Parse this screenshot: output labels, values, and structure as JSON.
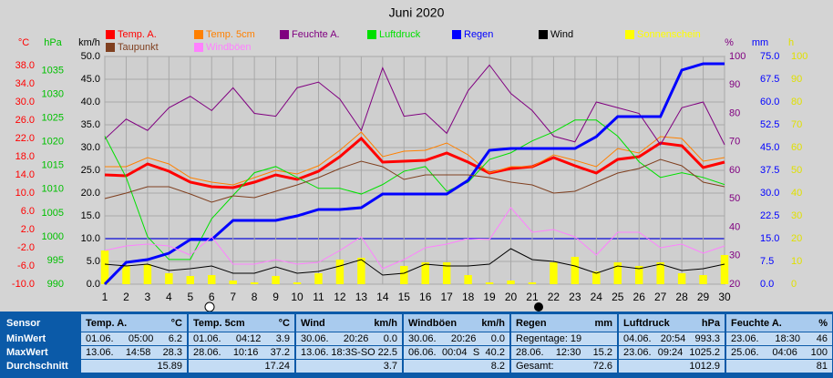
{
  "chart_data": {
    "type": "line",
    "title": "Juni 2020",
    "x": [
      1,
      2,
      3,
      4,
      5,
      6,
      7,
      8,
      9,
      10,
      11,
      12,
      13,
      14,
      15,
      16,
      17,
      18,
      19,
      20,
      21,
      22,
      23,
      24,
      25,
      26,
      27,
      28,
      29,
      30
    ],
    "xlim": [
      1,
      30
    ],
    "xticks": [
      1,
      2,
      3,
      4,
      5,
      6,
      7,
      8,
      9,
      10,
      11,
      12,
      13,
      14,
      15,
      16,
      17,
      18,
      19,
      20,
      21,
      22,
      23,
      24,
      25,
      26,
      27,
      28,
      29,
      30
    ],
    "axes": [
      {
        "label": "°C",
        "color": "#ff0000",
        "lim": [
          -10,
          40
        ],
        "ticks": [
          {
            "value": -10,
            "label": "-10.0"
          },
          {
            "value": -6,
            "label": "-6.0"
          },
          {
            "value": -2,
            "label": "-2.0"
          },
          {
            "value": 2,
            "label": "2.0"
          },
          {
            "value": 6,
            "label": "6.0"
          },
          {
            "value": 10,
            "label": "10.0"
          },
          {
            "value": 14,
            "label": "14.0"
          },
          {
            "value": 18,
            "label": "18.0"
          },
          {
            "value": 22,
            "label": "22.0"
          },
          {
            "value": 26,
            "label": "26.0"
          },
          {
            "value": 30,
            "label": "30.0"
          },
          {
            "value": 34,
            "label": "34.0"
          },
          {
            "value": 38,
            "label": "38.0"
          }
        ]
      },
      {
        "label": "hPa",
        "color": "#00c000",
        "lim": [
          990,
          1038
        ],
        "ticks": [
          990,
          995,
          1000,
          1005,
          1010,
          1015,
          1020,
          1025,
          1030,
          1035
        ]
      },
      {
        "label": "km/h",
        "color": "#000000",
        "lim": [
          0,
          50
        ],
        "grid": true,
        "ticks": [
          {
            "value": 0,
            "label": "0.0"
          },
          {
            "value": 5,
            "label": "5.0"
          },
          {
            "value": 10,
            "label": "10.0"
          },
          {
            "value": 15,
            "label": "15.0"
          },
          {
            "value": 20,
            "label": "20.0"
          },
          {
            "value": 25,
            "label": "25.0"
          },
          {
            "value": 30,
            "label": "30.0"
          },
          {
            "value": 35,
            "label": "35.0"
          },
          {
            "value": 40,
            "label": "40.0"
          },
          {
            "value": 45,
            "label": "45.0"
          },
          {
            "value": 50,
            "label": "50.0"
          }
        ]
      },
      {
        "label": "%",
        "color": "#800080",
        "lim": [
          20,
          100
        ],
        "ticks": [
          20,
          30,
          40,
          50,
          60,
          70,
          80,
          90,
          100
        ]
      },
      {
        "label": "mm",
        "color": "#0000ff",
        "lim": [
          0,
          75
        ],
        "ticks": [
          {
            "value": 0,
            "label": "0.0"
          },
          {
            "value": 7.5,
            "label": "7.5"
          },
          {
            "value": 15,
            "label": "15.0"
          },
          {
            "value": 22.5,
            "label": "22.5"
          },
          {
            "value": 30,
            "label": "30.0"
          },
          {
            "value": 37.5,
            "label": "37.5"
          },
          {
            "value": 45,
            "label": "45.0"
          },
          {
            "value": 52.5,
            "label": "52.5"
          },
          {
            "value": 60,
            "label": "60.0"
          },
          {
            "value": 67.5,
            "label": "67.5"
          },
          {
            "value": 75,
            "label": "75.0"
          }
        ]
      },
      {
        "label": "h",
        "color": "#e0e000",
        "lim": [
          0,
          100
        ],
        "ticks": [
          0,
          10,
          20,
          30,
          40,
          50,
          60,
          70,
          80,
          90,
          100
        ]
      }
    ],
    "series": [
      {
        "name": "Temp. A.",
        "color": "#ff0000",
        "axis": 0,
        "values": [
          14,
          13.8,
          16.4,
          14.8,
          12.4,
          11.4,
          11.2,
          12.4,
          14,
          13,
          14.8,
          18,
          22,
          16.8,
          17,
          17.2,
          18.8,
          16.8,
          14.4,
          15.4,
          15.8,
          17.8,
          16,
          14.4,
          17.4,
          18,
          21,
          20.4,
          15.6,
          16.8
        ]
      },
      {
        "name": "Temp. 5cm",
        "color": "#ff8000",
        "axis": 0,
        "values": [
          15.8,
          15.8,
          17.8,
          16.4,
          13.4,
          12.4,
          11.8,
          13.4,
          15,
          14.2,
          16,
          19.4,
          23.4,
          18,
          19.2,
          19.4,
          21,
          18.4,
          14.4,
          15.8,
          15.8,
          18.4,
          17.2,
          15.8,
          19.8,
          18.8,
          22.4,
          22,
          17,
          17.8
        ]
      },
      {
        "name": "Feuchte A.",
        "color": "#800080",
        "axis": 3,
        "values": [
          71,
          78,
          74,
          82,
          86,
          81,
          89,
          80,
          79,
          89,
          91,
          85,
          74,
          96,
          79,
          80,
          73,
          88,
          97,
          87,
          81,
          72,
          70,
          84,
          82,
          80,
          69,
          82,
          84,
          69
        ]
      },
      {
        "name": "Luftdruck",
        "color": "#00e000",
        "axis": 1,
        "values": [
          1021.2,
          1012.5,
          1000,
          995.2,
          995.2,
          1003.8,
          1008.7,
          1013.5,
          1014.8,
          1012.5,
          1010.2,
          1010.2,
          1009,
          1011,
          1013.8,
          1014.8,
          1009.6,
          1011.5,
          1016.3,
          1017.7,
          1020.2,
          1022.1,
          1024.6,
          1024.6,
          1021.2,
          1015.8,
          1012.5,
          1013.5,
          1012.5,
          1011
        ]
      },
      {
        "name": "Regen",
        "color": "#0000ff",
        "axis": 4,
        "values": [
          0,
          7.2,
          8.1,
          10.2,
          14.7,
          14.7,
          21,
          21,
          21,
          22.5,
          24.6,
          24.6,
          25.2,
          29.7,
          29.7,
          29.7,
          29.7,
          34.2,
          44.1,
          44.7,
          44.7,
          44.7,
          44.7,
          48.6,
          55.2,
          55.2,
          55.2,
          70.5,
          72.6,
          72.6
        ]
      },
      {
        "name": "Wind",
        "color": "#000000",
        "axis": 2,
        "values": [
          4.4,
          4,
          4.4,
          3,
          3.4,
          4,
          2.4,
          2.4,
          3.8,
          2.4,
          2.8,
          4,
          5.4,
          2,
          2.4,
          4.4,
          4,
          4,
          4.4,
          7.8,
          5.4,
          5,
          4,
          2.4,
          4,
          3.4,
          4.4,
          3,
          3.4,
          4.4
        ]
      },
      {
        "name": "Sonnenschein",
        "color": "#ffff00",
        "axis": 5,
        "type": "bar",
        "values": [
          14.8,
          8,
          8.8,
          4.8,
          3.6,
          4,
          1.6,
          0.8,
          3.6,
          0.8,
          4.8,
          10.8,
          11.6,
          0,
          8,
          9.6,
          9.6,
          4,
          0.8,
          1.6,
          0.8,
          9.6,
          12,
          5.6,
          9.6,
          8,
          9.6,
          4.8,
          4,
          12.8
        ]
      },
      {
        "name": "Taupunkt",
        "color": "#804020",
        "axis": 0,
        "values": [
          8.8,
          10,
          11.4,
          11.4,
          9.8,
          8,
          9.4,
          9,
          10.4,
          11.8,
          13.4,
          15.4,
          17,
          15.8,
          13,
          14,
          14,
          14,
          13.4,
          12.4,
          11.8,
          10,
          10.4,
          12.4,
          14.4,
          15.4,
          17.4,
          16,
          12.4,
          11.4
        ]
      },
      {
        "name": "Windböen",
        "color": "#ff80ff",
        "axis": 2,
        "values": [
          7.4,
          8.4,
          8.8,
          8.4,
          6.4,
          10.4,
          4.4,
          4.4,
          5.4,
          4.4,
          4.8,
          7.4,
          10.4,
          3.4,
          5.4,
          8,
          8.8,
          10,
          9.8,
          16.8,
          11.4,
          12,
          10.4,
          6.4,
          11.4,
          11.4,
          8,
          8.8,
          6.8,
          8.4
        ]
      }
    ]
  },
  "stats": {
    "row_labels": [
      "Sensor",
      "MinWert",
      "MaxWert",
      "Durchschnitt"
    ],
    "columns": [
      {
        "name": "Temp. A.",
        "unit": "°C",
        "rows": [
          [
            "01.06.",
            "05:00",
            "6.2"
          ],
          [
            "13.06.",
            "14:58",
            "28.3"
          ],
          [
            "15.89"
          ]
        ]
      },
      {
        "name": "Temp. 5cm",
        "unit": "°C",
        "rows": [
          [
            "01.06.",
            "04:12",
            "3.9"
          ],
          [
            "28.06.",
            "10:16",
            "37.2"
          ],
          [
            "17.24"
          ]
        ]
      },
      {
        "name": "Wind",
        "unit": "km/h",
        "rows": [
          [
            "30.06.",
            "20:26",
            "0.0"
          ],
          [
            "13.06.",
            "18:3S-SO",
            "22.5"
          ],
          [
            "3.7"
          ]
        ]
      },
      {
        "name": "Windböen",
        "unit": "km/h",
        "rows": [
          [
            "30.06.",
            "20:26",
            "0.0"
          ],
          [
            "06.06.",
            "00:04",
            "S",
            "40.2"
          ],
          [
            "8.2"
          ]
        ]
      },
      {
        "name": "Regen",
        "unit": "mm",
        "rows": [
          [
            "Regentage: 19"
          ],
          [
            "28.06.",
            "12:30",
            "15.2"
          ],
          [
            "Gesamt:",
            "72.6"
          ]
        ]
      },
      {
        "name": "Luftdruck",
        "unit": "hPa",
        "rows": [
          [
            "04.06.",
            "20:54",
            "993.3"
          ],
          [
            "23.06.",
            "09:24",
            "1025.2"
          ],
          [
            "1012.9"
          ]
        ]
      },
      {
        "name": "Feuchte A.",
        "unit": "%",
        "rows": [
          [
            "23.06.",
            "18:30",
            "46"
          ],
          [
            "25.06.",
            "04:06",
            "100"
          ],
          [
            "81"
          ]
        ]
      }
    ]
  }
}
